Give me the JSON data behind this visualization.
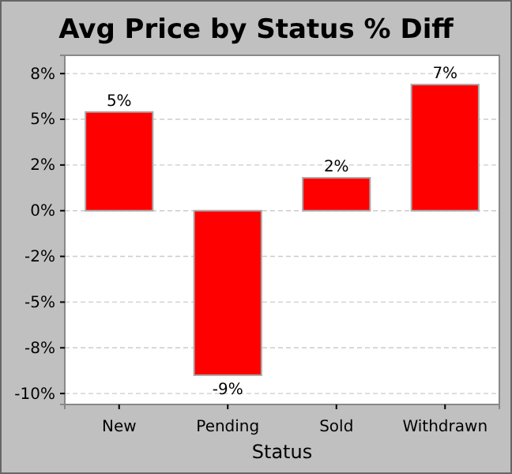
{
  "chart_data": {
    "type": "bar",
    "title": "Avg Price by Status % Diff",
    "xlabel": "Status",
    "categories": [
      "New",
      "Pending",
      "Sold",
      "Withdrawn"
    ],
    "values": [
      5.4,
      -9.0,
      1.8,
      6.9
    ],
    "value_labels": [
      "5%",
      "-9%",
      "2%",
      "7%"
    ],
    "color": "#ff0000",
    "ylim": [
      -10.6,
      8.5
    ],
    "yticks": [
      {
        "value": 7.5,
        "label": "8%"
      },
      {
        "value": 5,
        "label": "5%"
      },
      {
        "value": 2.5,
        "label": "2%"
      },
      {
        "value": 0,
        "label": "0%"
      },
      {
        "value": -2.5,
        "label": "-2%"
      },
      {
        "value": -5,
        "label": "-5%"
      },
      {
        "value": -7.5,
        "label": "-8%"
      },
      {
        "value": -10,
        "label": "-10%"
      }
    ],
    "grid": "y"
  }
}
